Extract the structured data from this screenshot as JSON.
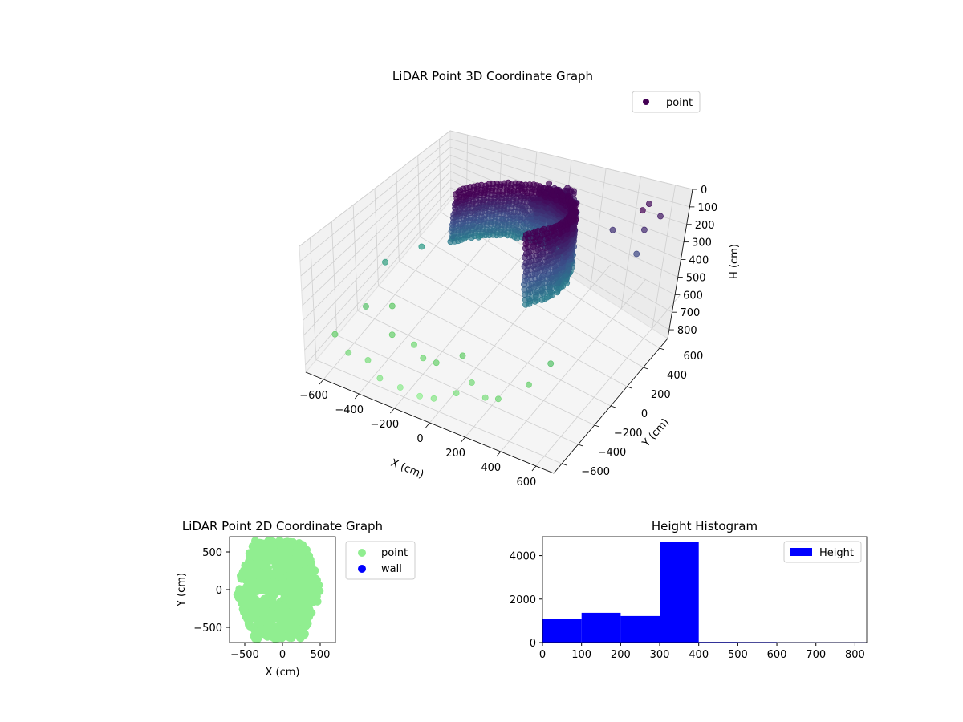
{
  "chart_data": [
    {
      "type": "scatter",
      "projection": "3d",
      "title": "LiDAR Point 3D Coordinate Graph",
      "xlabel": "X (cm)",
      "ylabel": "Y (cm)",
      "zlabel": "H (cm)",
      "xlim": [
        -700,
        700
      ],
      "ylim": [
        -700,
        700
      ],
      "zlim": [
        0,
        850
      ],
      "z_axis_inverted": true,
      "x_ticks": [
        "−600",
        "−400",
        "−200",
        "0",
        "200",
        "400",
        "600"
      ],
      "y_ticks": [
        "−600",
        "−400",
        "−200",
        "0",
        "200",
        "400",
        "600"
      ],
      "z_ticks": [
        "0",
        "100",
        "200",
        "300",
        "400",
        "500",
        "600",
        "700",
        "800"
      ],
      "colormap": "viridis",
      "legend": {
        "entries": [
          {
            "label": "point",
            "color": "#440154"
          }
        ],
        "position": "upper-right"
      },
      "grid": true,
      "series": [
        {
          "name": "point",
          "description_points": "dense half-cylinder shell of points (radius ~450 cm) at heights ~50-400 cm, plus a dense cluster near x~-50, y~550, h~120-250 and sparse outliers",
          "points": [
            [
              -600,
              -550,
              650
            ],
            [
              -500,
              -600,
              700
            ],
            [
              -400,
              -580,
              720
            ],
            [
              -300,
              -650,
              750
            ],
            [
              -200,
              -620,
              780
            ],
            [
              -100,
              -600,
              800
            ],
            [
              0,
              -640,
              760
            ],
            [
              100,
              -580,
              730
            ],
            [
              -550,
              -300,
              600
            ],
            [
              -450,
              -200,
              620
            ],
            [
              -350,
              -400,
              650
            ],
            [
              -250,
              -350,
              700
            ],
            [
              -150,
              -450,
              690
            ],
            [
              -50,
              -500,
              660
            ],
            [
              50,
              -400,
              640
            ],
            [
              150,
              -500,
              700
            ],
            [
              250,
              -550,
              720
            ],
            [
              350,
              -600,
              680
            ],
            [
              450,
              -450,
              650
            ],
            [
              500,
              -300,
              600
            ],
            [
              -600,
              0,
              500
            ],
            [
              -500,
              200,
              480
            ],
            [
              -400,
              350,
              470
            ],
            [
              -300,
              450,
              480
            ],
            [
              600,
              600,
              150
            ],
            [
              550,
              500,
              100
            ],
            [
              500,
              650,
              120
            ],
            [
              450,
              400,
              200
            ],
            [
              650,
              300,
              250
            ],
            [
              600,
              450,
              180
            ],
            [
              -200,
              500,
              260
            ],
            [
              -100,
              550,
              230
            ],
            [
              0,
              500,
              200
            ],
            [
              -50,
              560,
              140
            ]
          ]
        }
      ]
    },
    {
      "type": "scatter",
      "title": "LiDAR Point 2D Coordinate Graph",
      "xlabel": "X (cm)",
      "ylabel": "Y (cm)",
      "xlim": [
        -700,
        700
      ],
      "ylim": [
        -700,
        700
      ],
      "x_ticks": [
        "−500",
        "0",
        "500"
      ],
      "y_ticks": [
        "−500",
        "0",
        "500"
      ],
      "legend": {
        "entries": [
          {
            "label": "point",
            "color": "#90ee90"
          },
          {
            "label": "wall",
            "color": "#0000ff"
          }
        ],
        "position": "outside-right"
      },
      "series": [
        {
          "name": "point",
          "color": "#90ee90",
          "description_points": "dense filled blob covering roughly x -600..500, y -650..650"
        },
        {
          "name": "wall",
          "color": "#0000ff",
          "points": []
        }
      ]
    },
    {
      "type": "bar",
      "title": "Height Histogram",
      "xlabel": "",
      "ylabel": "",
      "bin_edges": [
        0,
        100,
        200,
        300,
        400,
        500,
        600,
        700,
        830
      ],
      "values": [
        1080,
        1370,
        1220,
        4640,
        30,
        25,
        20,
        20
      ],
      "xlim": [
        0,
        830
      ],
      "ylim": [
        0,
        4870
      ],
      "x_ticks": [
        "0",
        "100",
        "200",
        "300",
        "400",
        "500",
        "600",
        "700",
        "800"
      ],
      "y_ticks": [
        "0",
        "2000",
        "4000"
      ],
      "color": "#0000ff",
      "legend": {
        "entries": [
          {
            "label": "Height",
            "color": "#0000ff"
          }
        ],
        "position": "top-right"
      }
    }
  ]
}
